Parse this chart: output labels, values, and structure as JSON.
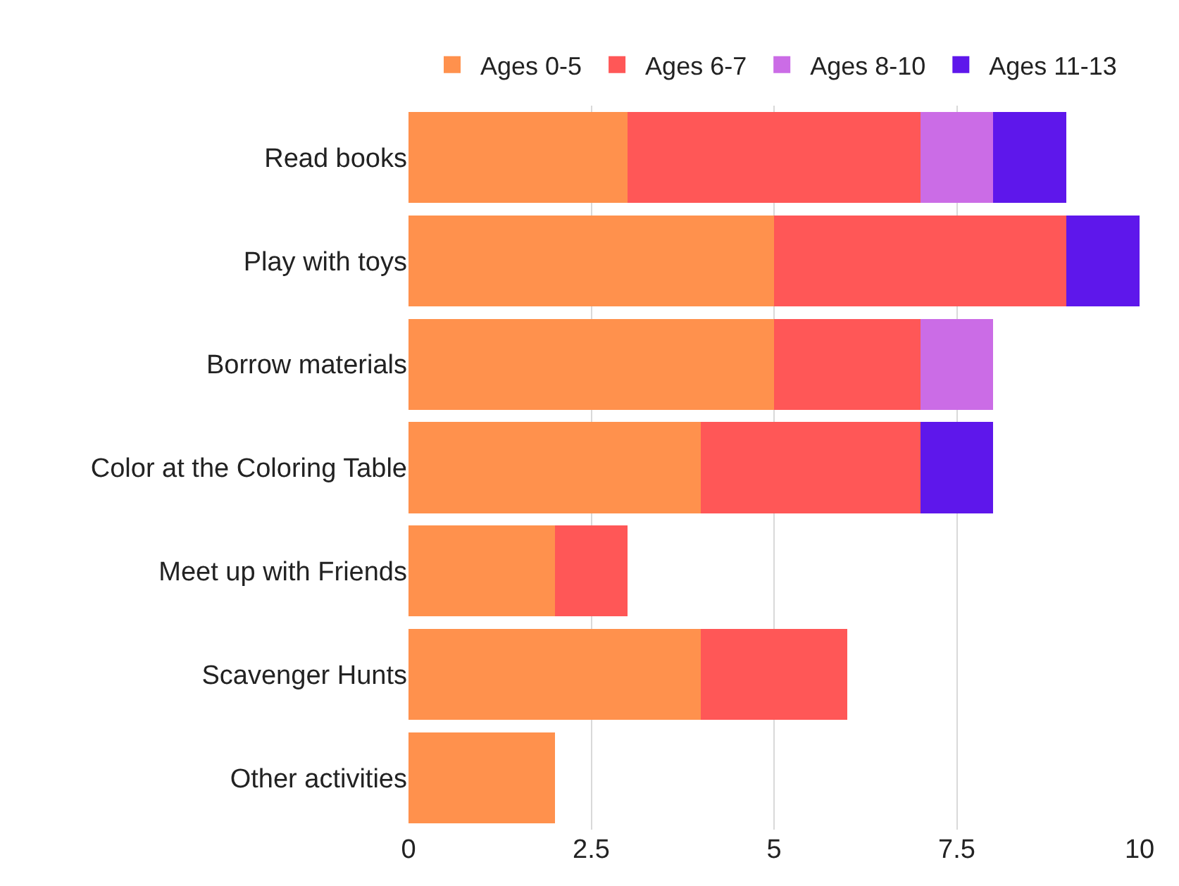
{
  "chart_data": {
    "type": "bar",
    "orientation": "horizontal",
    "stacked": true,
    "categories": [
      "Read books",
      "Play with toys",
      "Borrow materials",
      "Color at the Coloring Table",
      "Meet up with Friends",
      "Scavenger Hunts",
      "Other activities"
    ],
    "series": [
      {
        "name": "Ages 0-5",
        "color": "#ff914d",
        "values": [
          3,
          5,
          5,
          4,
          2,
          4,
          2
        ]
      },
      {
        "name": "Ages 6-7",
        "color": "#ff5757",
        "values": [
          4,
          4,
          2,
          3,
          1,
          2,
          0
        ]
      },
      {
        "name": "Ages 8-10",
        "color": "#cb6ce6",
        "values": [
          1,
          0,
          1,
          0,
          0,
          0,
          0
        ]
      },
      {
        "name": "Ages 11-13",
        "color": "#5e17eb",
        "values": [
          1,
          1,
          0,
          1,
          0,
          0,
          0
        ]
      }
    ],
    "xlim": [
      0,
      10
    ],
    "xticks": [
      0,
      2.5,
      5,
      7.5,
      10
    ],
    "grid": "x",
    "legend": "top"
  }
}
